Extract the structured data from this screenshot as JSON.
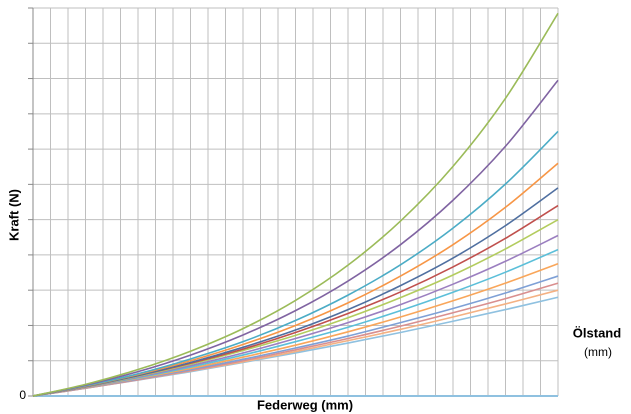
{
  "chart_data": {
    "type": "line",
    "y_label": "Kraft (N)",
    "x_label": "Federweg (mm)",
    "legend_title": "Ölstand",
    "legend_unit": "(mm)",
    "x": [
      0,
      3,
      6,
      9,
      12,
      15,
      18,
      21,
      24,
      27,
      30
    ],
    "series": [
      {
        "color": "#9bbb59",
        "values": [
          0,
          0.33,
          0.75,
          1.27,
          1.91,
          2.71,
          3.71,
          4.96,
          6.51,
          8.44,
          10.85
        ]
      },
      {
        "color": "#8064a2",
        "values": [
          0,
          0.31,
          0.69,
          1.16,
          1.73,
          2.42,
          3.26,
          4.29,
          5.55,
          7.08,
          8.95
        ]
      },
      {
        "color": "#4bacc6",
        "values": [
          0,
          0.29,
          0.63,
          1.05,
          1.54,
          2.14,
          2.86,
          3.72,
          4.76,
          6.01,
          7.5
        ]
      },
      {
        "color": "#f79646",
        "values": [
          0,
          0.28,
          0.61,
          1.0,
          1.46,
          2.0,
          2.64,
          3.4,
          4.29,
          5.35,
          6.6
        ]
      },
      {
        "color": "#4f6fa0",
        "values": [
          0,
          0.27,
          0.58,
          0.95,
          1.38,
          1.87,
          2.45,
          3.13,
          3.91,
          4.83,
          5.9
        ]
      },
      {
        "color": "#c0504d",
        "values": [
          0,
          0.27,
          0.58,
          0.93,
          1.33,
          1.8,
          2.34,
          2.95,
          3.66,
          4.47,
          5.4
        ]
      },
      {
        "color": "#b3cc5e",
        "values": [
          0,
          0.26,
          0.56,
          0.9,
          1.29,
          1.72,
          2.22,
          2.79,
          3.43,
          4.17,
          5.0
        ]
      },
      {
        "color": "#9b7fc0",
        "values": [
          0,
          0.25,
          0.54,
          0.86,
          1.22,
          1.63,
          2.08,
          2.59,
          3.17,
          3.82,
          4.55
        ]
      },
      {
        "color": "#5bbfd9",
        "values": [
          0,
          0.25,
          0.52,
          0.82,
          1.16,
          1.54,
          1.95,
          2.42,
          2.94,
          3.51,
          4.15
        ]
      },
      {
        "color": "#f9a65a",
        "values": [
          0,
          0.24,
          0.5,
          0.78,
          1.1,
          1.44,
          1.82,
          2.24,
          2.7,
          3.2,
          3.75
        ]
      },
      {
        "color": "#7ea0d6",
        "values": [
          0,
          0.23,
          0.48,
          0.75,
          1.04,
          1.36,
          1.7,
          2.08,
          2.48,
          2.92,
          3.4
        ]
      },
      {
        "color": "#d98f8f",
        "values": [
          0,
          0.22,
          0.46,
          0.72,
          1.0,
          1.31,
          1.63,
          1.98,
          2.36,
          2.76,
          3.2
        ]
      },
      {
        "color": "#f4b183",
        "values": [
          0,
          0.22,
          0.46,
          0.71,
          0.97,
          1.26,
          1.57,
          1.89,
          2.24,
          2.61,
          3.0
        ]
      },
      {
        "color": "#8fc1e0",
        "values": [
          0,
          0.22,
          0.45,
          0.69,
          0.95,
          1.22,
          1.5,
          1.8,
          2.12,
          2.45,
          2.8
        ]
      }
    ],
    "xlim": [
      0,
      30
    ],
    "ylim": [
      0,
      11
    ],
    "yticks": [
      0
    ],
    "xgrid": [
      0,
      1,
      2,
      3,
      4,
      5,
      6,
      7,
      8,
      9,
      10,
      11,
      12,
      13,
      14,
      15,
      16,
      17,
      18,
      19,
      20,
      21,
      22,
      23,
      24,
      25,
      26,
      27,
      28,
      29,
      30
    ],
    "ygrid": [
      0,
      1,
      2,
      3,
      4,
      5,
      6,
      7,
      8,
      9,
      10,
      11
    ],
    "grid": true
  }
}
